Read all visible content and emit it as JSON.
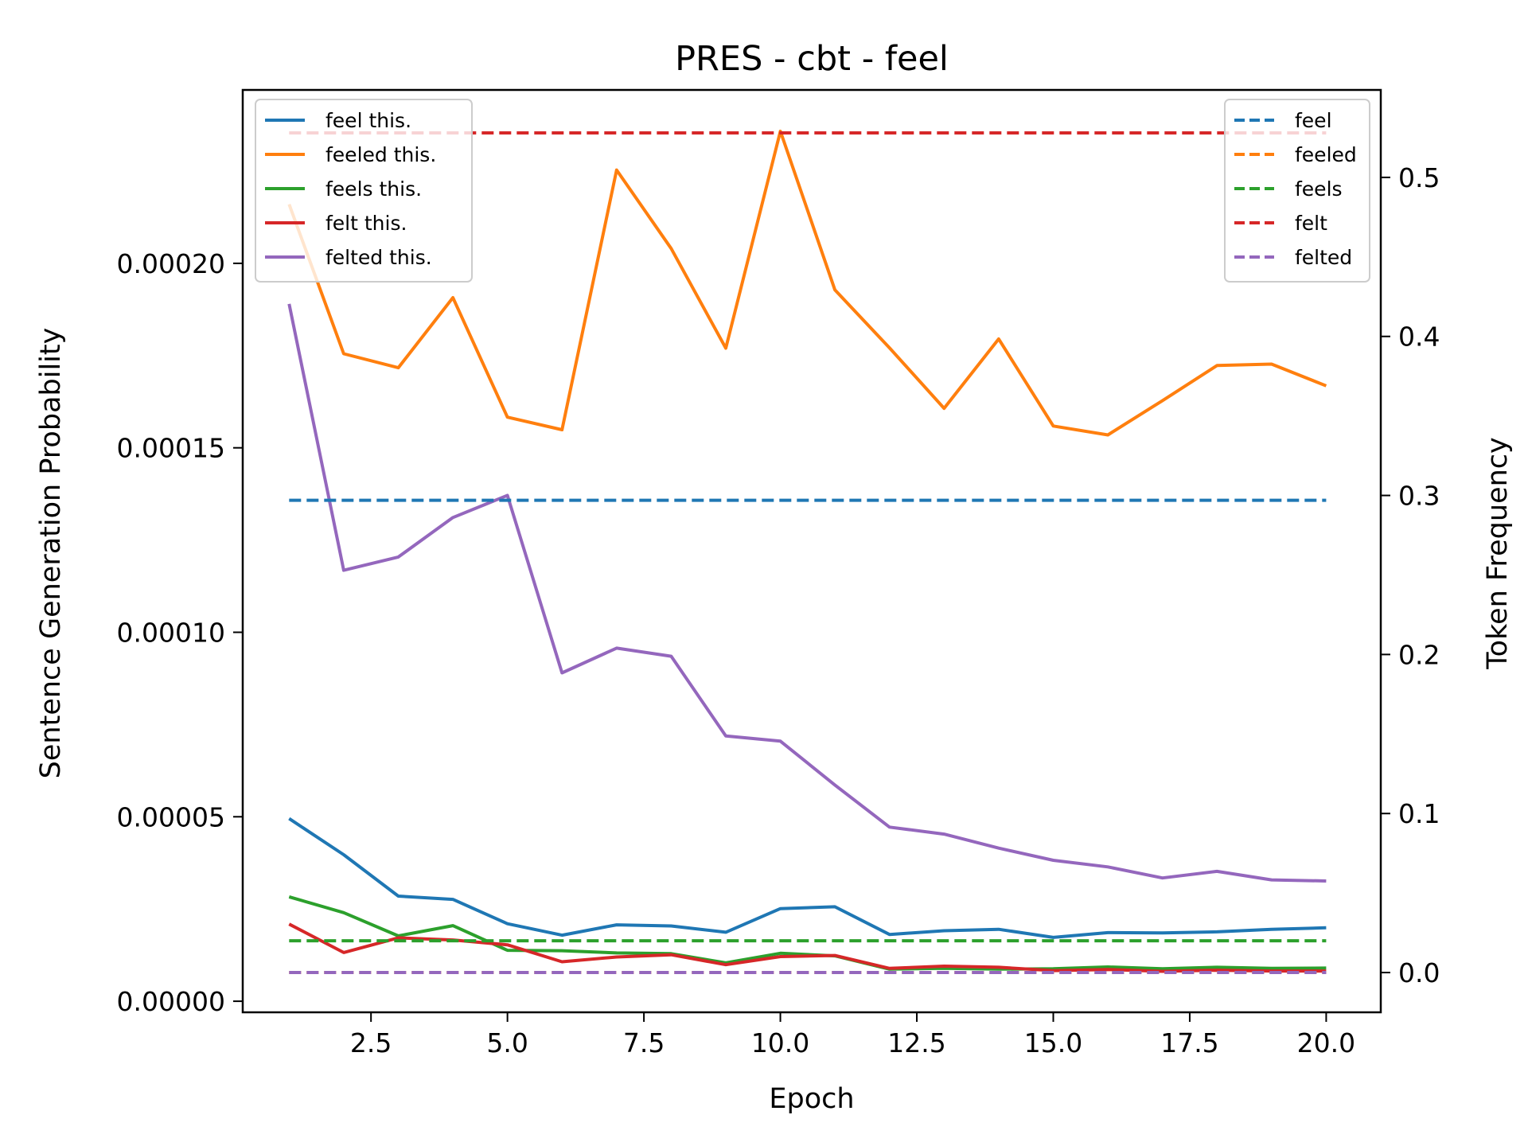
{
  "chart_data": {
    "type": "line",
    "title": "PRES - cbt - feel",
    "xlabel": "Epoch",
    "ylabel": "Sentence Generation Probability",
    "y2label": "Token Frequency",
    "xlim": [
      0.15,
      21.0
    ],
    "ylim": [
      -3e-06,
      0.000247
    ],
    "y2lim": [
      -0.025,
      0.555
    ],
    "x_ticks": [
      2.5,
      5.0,
      7.5,
      10.0,
      12.5,
      15.0,
      17.5,
      20.0
    ],
    "x_tick_labels": [
      "2.5",
      "5.0",
      "7.5",
      "10.0",
      "12.5",
      "15.0",
      "17.5",
      "20.0"
    ],
    "y_ticks": [
      0.0,
      5e-05,
      0.0001,
      0.00015,
      0.0002
    ],
    "y_tick_labels": [
      "0.00000",
      "0.00005",
      "0.00010",
      "0.00015",
      "0.00020"
    ],
    "y2_ticks": [
      0.0,
      0.1,
      0.2,
      0.3,
      0.4,
      0.5
    ],
    "y2_tick_labels": [
      "0.0",
      "0.1",
      "0.2",
      "0.3",
      "0.4",
      "0.5"
    ],
    "grid": false,
    "legend_left": "top-left",
    "legend_right": "top-right",
    "x": [
      1,
      2,
      3,
      4,
      5,
      6,
      7,
      8,
      9,
      10,
      11,
      12,
      13,
      14,
      15,
      16,
      17,
      18,
      19,
      20
    ],
    "series": [
      {
        "name": "feel this.",
        "color": "#1f77b4",
        "axis": "left",
        "style": "solid",
        "values": [
          4.95e-05,
          3.97e-05,
          2.85e-05,
          2.76e-05,
          2.1e-05,
          1.79e-05,
          2.07e-05,
          2.04e-05,
          1.87e-05,
          2.51e-05,
          2.56e-05,
          1.81e-05,
          1.91e-05,
          1.95e-05,
          1.73e-05,
          1.86e-05,
          1.85e-05,
          1.88e-05,
          1.95e-05,
          1.99e-05
        ]
      },
      {
        "name": "feeled this.",
        "color": "#ff7f0e",
        "axis": "left",
        "style": "solid",
        "values": [
          0.000216,
          0.0001755,
          0.0001717,
          0.0001907,
          0.0001583,
          0.0001549,
          0.0002253,
          0.000204,
          0.000177,
          0.0002358,
          0.0001928,
          0.0001771,
          0.0001607,
          0.0001795,
          0.0001559,
          0.0001535,
          0.0001628,
          0.0001723,
          0.0001727,
          0.0001668
        ]
      },
      {
        "name": "feels this.",
        "color": "#2ca02c",
        "axis": "left",
        "style": "solid",
        "values": [
          2.83e-05,
          2.4e-05,
          1.77e-05,
          2.05e-05,
          1.38e-05,
          1.37e-05,
          1.31e-05,
          1.29e-05,
          1.04e-05,
          1.3e-05,
          1.23e-05,
          8.7e-06,
          8.9e-06,
          8.7e-06,
          8.8e-06,
          9.3e-06,
          8.8e-06,
          9.2e-06,
          8.9e-06,
          9e-06
        ]
      },
      {
        "name": "felt this.",
        "color": "#d62728",
        "axis": "left",
        "style": "solid",
        "values": [
          2.09e-05,
          1.32e-05,
          1.72e-05,
          1.66e-05,
          1.53e-05,
          1.07e-05,
          1.2e-05,
          1.26e-05,
          9.9e-06,
          1.21e-05,
          1.24e-05,
          8.9e-06,
          9.5e-06,
          9.2e-06,
          8.3e-06,
          8.6e-06,
          8.1e-06,
          8.4e-06,
          8.2e-06,
          8.2e-06
        ]
      },
      {
        "name": "felted this.",
        "color": "#9467bd",
        "axis": "left",
        "style": "solid",
        "values": [
          0.000189,
          0.0001168,
          0.0001204,
          0.0001311,
          0.0001371,
          8.9e-05,
          9.57e-05,
          9.35e-05,
          7.19e-05,
          7.05e-05,
          5.86e-05,
          4.72e-05,
          4.53e-05,
          4.15e-05,
          3.82e-05,
          3.64e-05,
          3.34e-05,
          3.52e-05,
          3.29e-05,
          3.26e-05
        ]
      },
      {
        "name": "feel",
        "color": "#1f77b4",
        "axis": "right",
        "style": "dashed",
        "constant": 0.297
      },
      {
        "name": "feeled",
        "color": "#ff7f0e",
        "axis": "right",
        "style": "dashed",
        "constant": 0.0
      },
      {
        "name": "feels",
        "color": "#2ca02c",
        "axis": "right",
        "style": "dashed",
        "constant": 0.02
      },
      {
        "name": "felt",
        "color": "#d62728",
        "axis": "right",
        "style": "dashed",
        "constant": 0.528
      },
      {
        "name": "felted",
        "color": "#9467bd",
        "axis": "right",
        "style": "dashed",
        "constant": 0.0
      }
    ]
  }
}
